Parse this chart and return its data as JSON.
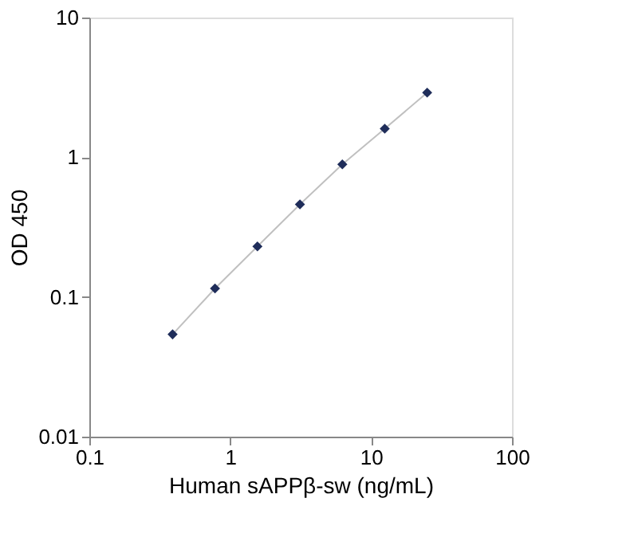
{
  "chart_data": {
    "type": "scatter",
    "xlabel": "Human sAPPβ-sw (ng/mL)",
    "ylabel": "OD 450",
    "log": "xy",
    "grid": false,
    "marker": "diamond",
    "x": [
      0.39,
      0.78,
      1.56,
      3.125,
      6.25,
      12.5,
      25
    ],
    "series": [
      {
        "type": "line",
        "color": "#c0c0c0",
        "marker": "none",
        "values": [
          0.054,
          0.115,
          0.23,
          0.46,
          0.89,
          1.6,
          2.9
        ]
      },
      {
        "color": "#1f2d5a",
        "values": [
          0.054,
          0.115,
          0.23,
          0.46,
          0.89,
          1.6,
          2.9
        ]
      }
    ],
    "xlim": [
      0.1,
      100
    ],
    "xticks": [
      0.1,
      1,
      10,
      100
    ],
    "ylim": [
      0.01,
      10
    ],
    "yticks": [
      0.01,
      0.1,
      1,
      10
    ]
  }
}
